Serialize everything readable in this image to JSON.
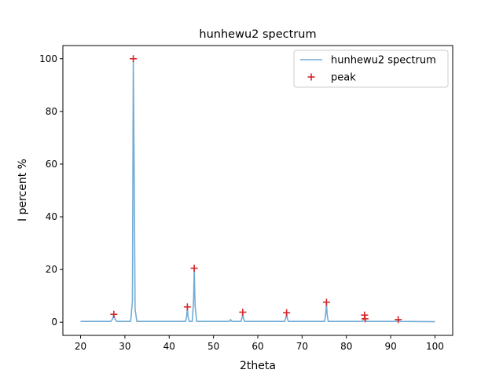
{
  "chart_data": {
    "type": "line",
    "title": "hunhewu2 spectrum",
    "xlabel": "2theta",
    "ylabel": "I percent %",
    "xlim": [
      16,
      104
    ],
    "ylim": [
      -5,
      105
    ],
    "xticks": [
      20,
      30,
      40,
      50,
      60,
      70,
      80,
      90,
      100
    ],
    "yticks": [
      0,
      20,
      40,
      60,
      80,
      100
    ],
    "grid": false,
    "legend_position": "top-right",
    "series": [
      {
        "name": "hunhewu2 spectrum",
        "kind": "line",
        "color": "#74acd6",
        "x": [
          20,
          26.8,
          27.2,
          27.5,
          27.8,
          28.2,
          31.3,
          31.7,
          31.9,
          32.1,
          32.3,
          32.7,
          43.7,
          43.95,
          44.1,
          44.25,
          44.5,
          45.2,
          45.5,
          45.65,
          45.85,
          46.2,
          53.6,
          53.85,
          54.1,
          56.2,
          56.45,
          56.6,
          56.75,
          57.0,
          66.1,
          66.35,
          66.5,
          66.65,
          66.9,
          75.1,
          75.35,
          75.5,
          75.65,
          75.9,
          83.7,
          83.95,
          84.1,
          84.25,
          84.5,
          91.3,
          91.55,
          91.7,
          91.85,
          92.1,
          100
        ],
        "y": [
          0.3,
          0.3,
          1.2,
          2.8,
          1.1,
          0.3,
          0.3,
          8.0,
          100.0,
          55.0,
          5.0,
          0.3,
          0.3,
          2.5,
          5.5,
          2.2,
          0.3,
          0.3,
          8.0,
          20.5,
          6.0,
          0.3,
          0.3,
          1.0,
          0.3,
          0.3,
          1.8,
          3.5,
          1.6,
          0.3,
          0.3,
          1.8,
          3.5,
          1.6,
          0.3,
          0.3,
          3.5,
          7.5,
          3.0,
          0.3,
          0.3,
          1.2,
          2.5,
          1.0,
          0.3,
          0.3,
          0.6,
          1.0,
          0.6,
          0.3,
          0.2
        ]
      },
      {
        "name": "peak",
        "kind": "scatter",
        "marker": "+",
        "color": "#d62728",
        "x": [
          27.5,
          31.9,
          44.1,
          45.65,
          56.6,
          66.5,
          75.5,
          84.1,
          84.2,
          91.7
        ],
        "y": [
          3.0,
          100.0,
          5.8,
          20.5,
          3.8,
          3.6,
          7.6,
          2.7,
          1.3,
          1.0
        ]
      }
    ]
  }
}
